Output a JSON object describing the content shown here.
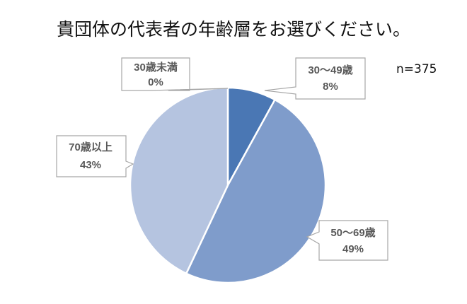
{
  "title": "貴団体の代表者の年齢層をお選びください。",
  "sample_note": "n=375",
  "chart_data": {
    "type": "pie",
    "title": "貴団体の代表者の年齢層をお選びください。",
    "slices": [
      {
        "label": "30歳未満",
        "value": 0,
        "percent_label": "0%",
        "color": "#2E62A8"
      },
      {
        "label": "30～49歳",
        "value": 8,
        "percent_label": "8%",
        "color": "#4A77B4"
      },
      {
        "label": "50～69歳",
        "value": 49,
        "percent_label": "49%",
        "color": "#7F9CCB"
      },
      {
        "label": "70歳以上",
        "value": 43,
        "percent_label": "43%",
        "color": "#B5C4E0"
      }
    ],
    "legend": "none"
  }
}
